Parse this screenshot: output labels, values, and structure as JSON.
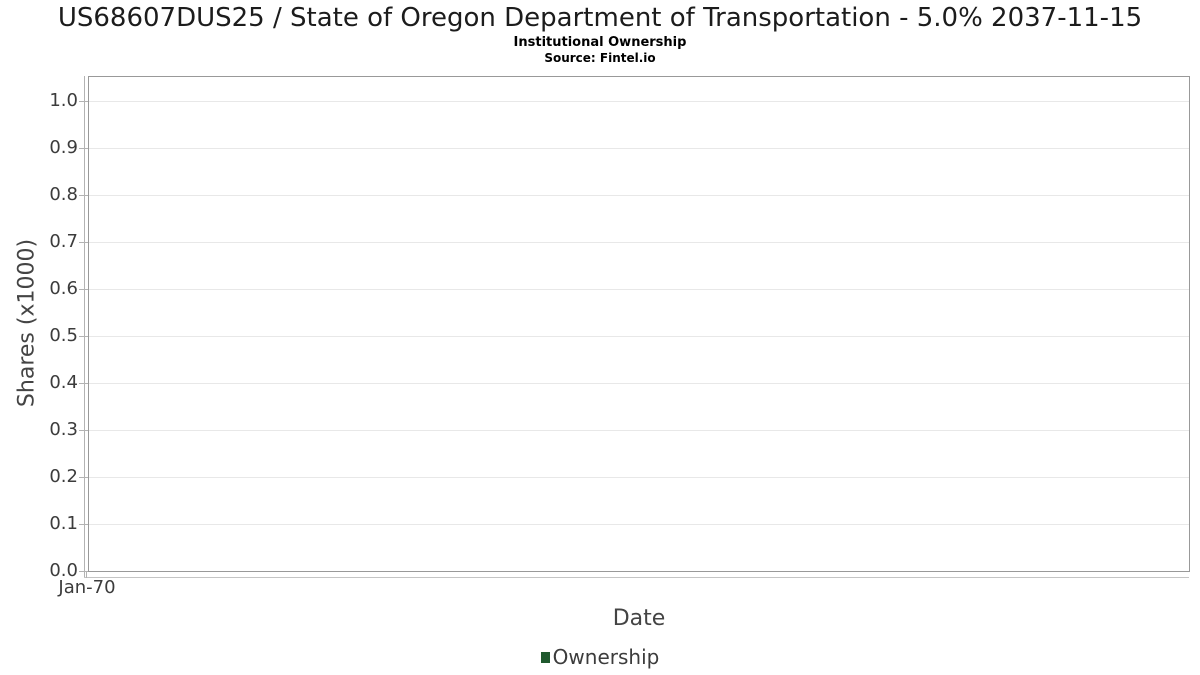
{
  "chart_data": {
    "type": "line",
    "title": "US68607DUS25 / State of Oregon Department of Transportation - 5.0% 2037-11-15",
    "subtitle": "Institutional Ownership",
    "source": "Source: Fintel.io",
    "xlabel": "Date",
    "ylabel": "Shares (x1000)",
    "x_ticks": [
      "Jan-70"
    ],
    "y_ticks": [
      "0.0",
      "0.1",
      "0.2",
      "0.3",
      "0.4",
      "0.5",
      "0.6",
      "0.7",
      "0.8",
      "0.9",
      "1.0"
    ],
    "ylim": [
      0,
      1.05
    ],
    "xlim_labels": [
      "Jan-70"
    ],
    "grid": true,
    "legend_position": "bottom-center",
    "series": [
      {
        "name": "Ownership",
        "color": "#20592e",
        "x": [],
        "values": []
      }
    ],
    "plot_background": "#ffffff",
    "border_color": "#999999",
    "gridline_color": "#e8e8e8"
  }
}
